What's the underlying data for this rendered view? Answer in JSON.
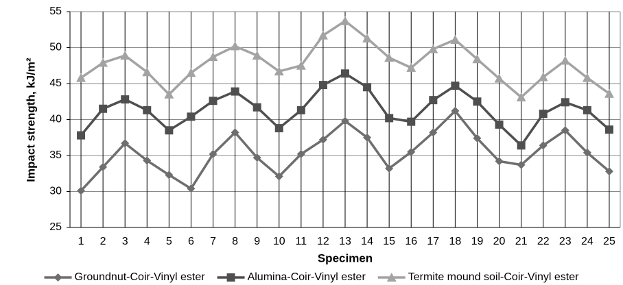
{
  "chart_data": {
    "type": "line",
    "y_label": "Impact strength, kJ/m²",
    "x_label": "Specimen",
    "categories": [
      "1",
      "2",
      "3",
      "4",
      "5",
      "6",
      "7",
      "8",
      "9",
      "10",
      "11",
      "12",
      "13",
      "14",
      "15",
      "16",
      "17",
      "18",
      "19",
      "20",
      "21",
      "22",
      "23",
      "24",
      "25"
    ],
    "series": [
      {
        "name": "Groundnut-Coir-Vinyl ester",
        "color": "#6e6e6e",
        "marker": "diamond",
        "values": [
          30.1,
          33.4,
          36.7,
          34.3,
          32.3,
          30.4,
          35.2,
          38.2,
          34.7,
          32.1,
          35.2,
          37.2,
          39.8,
          37.5,
          33.2,
          35.5,
          38.2,
          41.2,
          37.4,
          34.2,
          33.7,
          36.4,
          38.5,
          35.4,
          32.8
        ]
      },
      {
        "name": "Alumina-Coir-Vinyl ester",
        "color": "#4f4f4f",
        "marker": "square",
        "values": [
          37.8,
          41.5,
          42.8,
          41.3,
          38.5,
          40.4,
          42.6,
          43.9,
          41.7,
          38.8,
          41.3,
          44.8,
          46.4,
          44.5,
          40.2,
          39.7,
          42.7,
          44.7,
          42.5,
          39.3,
          36.4,
          40.8,
          42.4,
          41.3,
          38.6
        ]
      },
      {
        "name": "Termite mound soil-Coir-Vinyl ester",
        "color": "#a3a3a3",
        "marker": "triangle",
        "values": [
          45.8,
          47.9,
          48.9,
          46.6,
          43.5,
          46.5,
          48.7,
          50.2,
          48.9,
          46.7,
          47.5,
          51.7,
          53.7,
          51.3,
          48.6,
          47.2,
          49.8,
          51.1,
          48.4,
          45.7,
          43.1,
          45.9,
          48.2,
          45.8,
          43.6
        ]
      }
    ],
    "ylim": [
      25,
      55
    ],
    "yticks": [
      25,
      30,
      35,
      40,
      45,
      50,
      55
    ],
    "grid": true,
    "legend": "bottom"
  }
}
